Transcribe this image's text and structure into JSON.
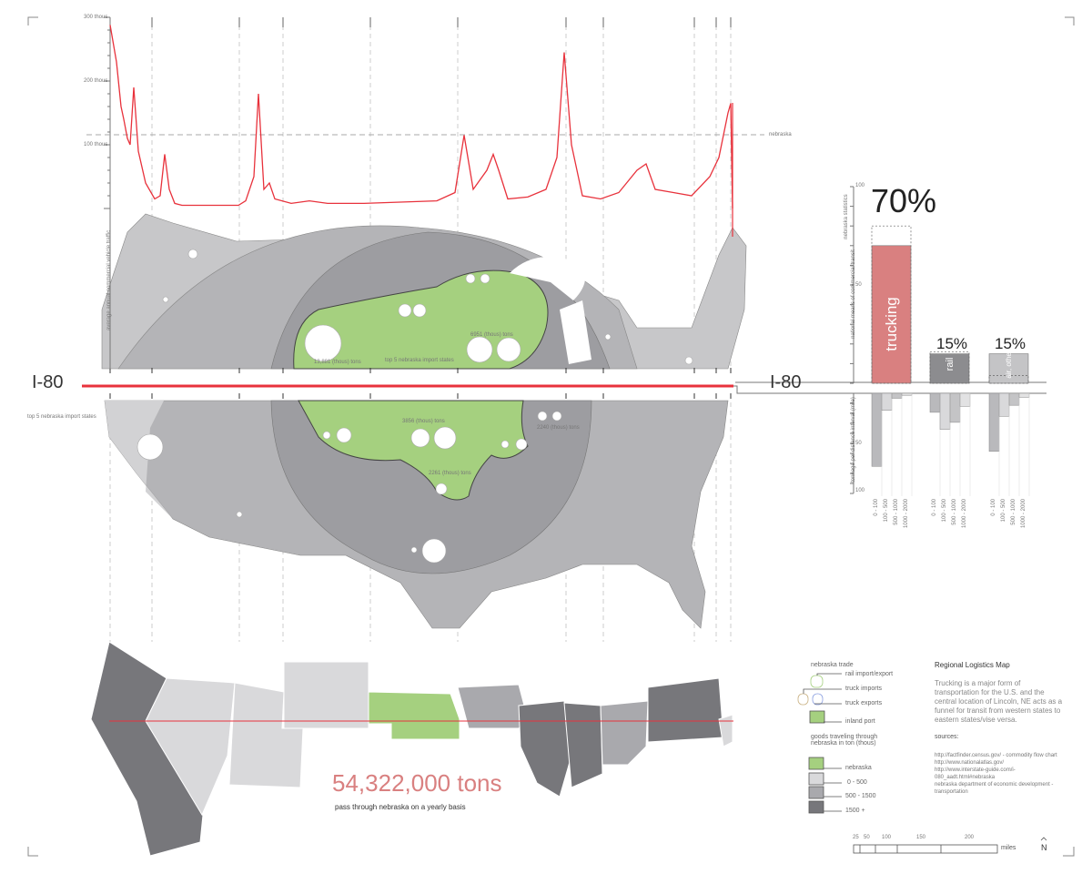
{
  "traffic_chart": {
    "chart_data": {
      "type": "line",
      "ylabel": "average annual commercial vehicle traffic",
      "ytick_labels": [
        "300 thous",
        "200 thous",
        "100 thous"
      ],
      "ylim": [
        0,
        300
      ],
      "reference_line": {
        "label": "nebraska",
        "value": 115
      },
      "series": [
        {
          "values": [
            288,
            230,
            160,
            140,
            110,
            100,
            190,
            90,
            40,
            15,
            20,
            85,
            30,
            8,
            5,
            5,
            5,
            12,
            50,
            180,
            30,
            40,
            15,
            8,
            12,
            8,
            8,
            10,
            12,
            25,
            115,
            30,
            60,
            85,
            60,
            15,
            18,
            30,
            80,
            245,
            100,
            20,
            15,
            25,
            60,
            70,
            30,
            25,
            20,
            50,
            80,
            150,
            165,
            0
          ]
        }
      ],
      "color": "#e8323c"
    }
  },
  "route": {
    "label_left": "I-80",
    "label_right": "I-80",
    "color": "#e8323c"
  },
  "map_labels": {
    "top5_upper": "top 5 nebraska import states",
    "top5_lower": "top 5 nebraska import states",
    "ton_1": "13,881 (thous) tons",
    "ton_2": "6951 (thous) tons",
    "ton_3": "3856 (thous) tons",
    "ton_4": "2261 (thous) tons",
    "ton_5": "2240 (thous) tons"
  },
  "mode_chart": {
    "chart_data": {
      "type": "bar",
      "ylabel_top": "national means of commercial transit",
      "legend_dashed": "nebraska statistics",
      "ylabel_bottom": "tonnage per distance interval (mile)",
      "ytick_labels_top": [
        "100",
        "50"
      ],
      "ytick_labels_bottom": [
        "50",
        "100"
      ],
      "ylim": [
        0,
        100
      ],
      "categories": [
        "trucking",
        "rail",
        "air, other"
      ],
      "national_percent": [
        70,
        15,
        15
      ],
      "percent_labels": [
        "70%",
        "15%",
        "15%"
      ],
      "nebraska_values": [
        80,
        16,
        4
      ],
      "distance_intervals": [
        "0 - 100",
        "100 - 500",
        "500 - 1000",
        "1000 - 2000"
      ],
      "tonnage_by_interval": [
        [
          73,
          17,
          5,
          2
        ],
        [
          19,
          36,
          29,
          13
        ],
        [
          58,
          23,
          12,
          4
        ]
      ],
      "colors": {
        "trucking": "#d98080",
        "rail": "#8c8c8f",
        "air_other": "#c4c4c6"
      }
    }
  },
  "states_strip": {
    "colors": {
      "nebraska": "#a5d07f",
      "low": "#d9d9db",
      "mid": "#a9a9ad",
      "high": "#77777b"
    }
  },
  "totals": {
    "value": "54,322,000 tons",
    "caption": "pass through nebraska on a yearly basis"
  },
  "legend": {
    "title_trade": "nebraska trade",
    "rail": "rail import/export",
    "truck_imports": "truck imports",
    "truck_exports": "truck exports",
    "inland_port": "inland port",
    "title_goods": "goods traveling through nebraska in ton (thous)",
    "nebraska": "nebraska",
    "range_1": "0 - 500",
    "range_2": "500 - 1500",
    "range_3": "1500 +"
  },
  "info": {
    "title": "Regional Logistics Map",
    "body": "Trucking is a major form of transportation for the U.S. and the central location of Lincoln, NE acts as a funnel for transit from western states to eastern states/vise versa.",
    "sources_title": "sources:",
    "sources": [
      "http://factfinder.census.gov/  - commodity flow chart",
      "http://www.nationalatlas.gov/",
      "http://www.interstate-guide.com/i-080_aadt.html#nebraska",
      "nebraska department of economic development - transportation"
    ]
  },
  "scale": {
    "ticks": [
      "25",
      "50",
      "100",
      "150",
      "200"
    ],
    "unit": "miles",
    "north": "N"
  }
}
